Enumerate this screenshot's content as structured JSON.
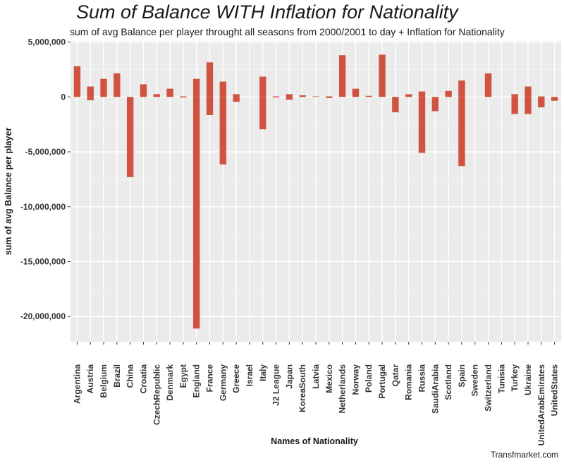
{
  "chart_data": {
    "type": "bar",
    "title": "Sum of Balance WITH Inflation for Nationality",
    "subtitle": "sum of avg Balance  per player throught all seasons from 2000/2001 to day + Inflation for Nationality",
    "xlabel": "Names of Nationality",
    "ylabel": "sum of avg Balance  per player",
    "caption": "Transfmarket.com",
    "ylim": [
      -22300000,
      5100000
    ],
    "yticks": [
      5000000,
      0,
      -5000000,
      -10000000,
      -15000000,
      -20000000
    ],
    "ytick_labels": [
      "5,000,000",
      "0",
      "-5,000,000",
      "-10,000,000",
      "-15,000,000",
      "-20,000,000"
    ],
    "grid": true,
    "bar_color": "#cf5340",
    "panel_color": "#ebebeb",
    "categories": [
      "Argentina",
      "Austria",
      "Belgium",
      "Brazil",
      "China",
      "Croatia",
      "CzechRepublic",
      "Denmark",
      "Egypt",
      "England",
      "France",
      "Germany",
      "Greece",
      "Israel",
      "Italy",
      "J2 League",
      "Japan",
      "KoreaSouth",
      "Latvia",
      "Mexico",
      "Netherlands",
      "Norway",
      "Poland",
      "Portugal",
      "Qatar",
      "Romania",
      "Russia",
      "SaudiArabia",
      "Scotland",
      "Spain",
      "Sweden",
      "Switzerland",
      "Tunisia",
      "Turkey",
      "Ukraine",
      "UnitedArabEmirates",
      "UnitedStates"
    ],
    "series": [
      {
        "positive": [
          2800000,
          950000,
          1650000,
          2150000,
          0,
          1150000,
          250000,
          750000,
          50000,
          1650000,
          3150000,
          1400000,
          250000,
          0,
          1850000,
          50000,
          250000,
          150000,
          50000,
          50000,
          3800000,
          750000,
          100000,
          3850000,
          0,
          250000,
          500000,
          0,
          550000,
          1500000,
          0,
          2150000,
          0,
          250000,
          950000,
          50000,
          0
        ],
        "negative": [
          0,
          -300000,
          0,
          0,
          -7300000,
          0,
          0,
          0,
          -50000,
          -21100000,
          -1650000,
          -6150000,
          -450000,
          0,
          -2950000,
          -50000,
          -250000,
          0,
          0,
          -100000,
          0,
          0,
          0,
          0,
          -1400000,
          0,
          -5100000,
          -1300000,
          0,
          -6300000,
          0,
          0,
          0,
          -1550000,
          -1550000,
          -950000,
          -350000
        ]
      }
    ]
  }
}
